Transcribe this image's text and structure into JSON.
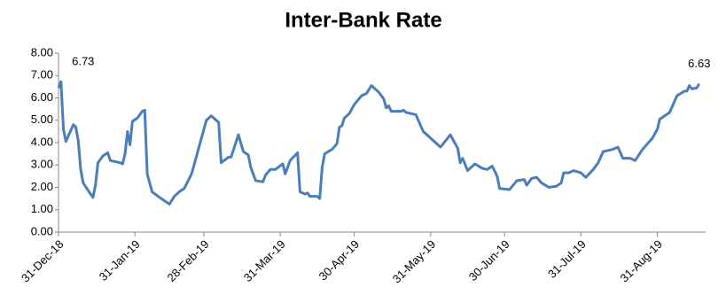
{
  "chart_data": {
    "type": "line",
    "title": "Inter-Bank Rate",
    "x": [
      "2018-12-31",
      "2019-01-01",
      "2019-01-02",
      "2019-01-03",
      "2019-01-06",
      "2019-01-07",
      "2019-01-08",
      "2019-01-09",
      "2019-01-10",
      "2019-01-13",
      "2019-01-14",
      "2019-01-15",
      "2019-01-16",
      "2019-01-18",
      "2019-01-20",
      "2019-01-21",
      "2019-01-25",
      "2019-01-26",
      "2019-01-27",
      "2019-01-28",
      "2019-01-29",
      "2019-01-30",
      "2019-02-01",
      "2019-02-03",
      "2019-02-04",
      "2019-02-05",
      "2019-02-07",
      "2019-02-10",
      "2019-02-12",
      "2019-02-14",
      "2019-02-16",
      "2019-02-18",
      "2019-02-20",
      "2019-02-23",
      "2019-02-26",
      "2019-03-01",
      "2019-03-03",
      "2019-03-06",
      "2019-03-07",
      "2019-03-10",
      "2019-03-11",
      "2019-03-14",
      "2019-03-16",
      "2019-03-18",
      "2019-03-19",
      "2019-03-21",
      "2019-03-24",
      "2019-03-25",
      "2019-03-27",
      "2019-03-29",
      "2019-04-01",
      "2019-04-02",
      "2019-04-04",
      "2019-04-07",
      "2019-04-08",
      "2019-04-10",
      "2019-04-11",
      "2019-04-12",
      "2019-04-15",
      "2019-04-16",
      "2019-04-17",
      "2019-04-18",
      "2019-04-21",
      "2019-04-23",
      "2019-04-24",
      "2019-04-25",
      "2019-04-26",
      "2019-04-28",
      "2019-04-30",
      "2019-05-03",
      "2019-05-05",
      "2019-05-07",
      "2019-05-10",
      "2019-05-12",
      "2019-05-13",
      "2019-05-14",
      "2019-05-15",
      "2019-05-19",
      "2019-05-20",
      "2019-05-21",
      "2019-05-25",
      "2019-05-28",
      "2019-06-01",
      "2019-06-04",
      "2019-06-08",
      "2019-06-11",
      "2019-06-12",
      "2019-06-13",
      "2019-06-15",
      "2019-06-18",
      "2019-06-21",
      "2019-06-23",
      "2019-06-25",
      "2019-06-27",
      "2019-06-28",
      "2019-07-02",
      "2019-07-05",
      "2019-07-08",
      "2019-07-09",
      "2019-07-11",
      "2019-07-13",
      "2019-07-15",
      "2019-07-18",
      "2019-07-21",
      "2019-07-23",
      "2019-07-24",
      "2019-07-26",
      "2019-07-28",
      "2019-07-31",
      "2019-08-02",
      "2019-08-05",
      "2019-08-07",
      "2019-08-09",
      "2019-08-13",
      "2019-08-15",
      "2019-08-17",
      "2019-08-20",
      "2019-08-22",
      "2019-08-25",
      "2019-08-29",
      "2019-08-31",
      "2019-09-01",
      "2019-09-05",
      "2019-09-08",
      "2019-09-11",
      "2019-09-12",
      "2019-09-13",
      "2019-09-14",
      "2019-09-16",
      "2019-09-17"
    ],
    "series": [
      {
        "name": "Inter-Bank Rate",
        "color": "#4a7ebb",
        "values": [
          6.45,
          6.73,
          4.6,
          4.05,
          4.8,
          4.7,
          4.1,
          2.8,
          2.2,
          1.7,
          1.55,
          2.1,
          3.1,
          3.4,
          3.55,
          3.2,
          3.1,
          3.05,
          3.5,
          4.5,
          3.9,
          4.95,
          5.1,
          5.4,
          5.45,
          2.6,
          1.8,
          1.55,
          1.4,
          1.25,
          1.6,
          1.8,
          1.95,
          2.6,
          3.8,
          5.0,
          5.2,
          4.9,
          3.1,
          3.35,
          3.35,
          4.35,
          3.6,
          3.45,
          2.9,
          2.3,
          2.25,
          2.55,
          2.8,
          2.8,
          3.05,
          2.6,
          3.2,
          3.55,
          1.8,
          1.7,
          1.75,
          1.6,
          1.6,
          1.5,
          2.9,
          3.5,
          3.7,
          3.95,
          4.7,
          4.75,
          5.1,
          5.3,
          5.7,
          6.1,
          6.2,
          6.55,
          6.25,
          5.95,
          5.55,
          5.65,
          5.4,
          5.4,
          5.45,
          5.35,
          5.25,
          4.5,
          4.1,
          3.8,
          4.35,
          3.75,
          3.1,
          3.3,
          2.75,
          3.05,
          2.85,
          2.8,
          2.95,
          2.5,
          1.95,
          1.9,
          2.3,
          2.35,
          2.1,
          2.4,
          2.45,
          2.2,
          2.0,
          2.05,
          2.2,
          2.65,
          2.65,
          2.75,
          2.65,
          2.45,
          2.8,
          3.1,
          3.6,
          3.7,
          3.8,
          3.3,
          3.3,
          3.2,
          3.7,
          4.2,
          4.6,
          5.05,
          5.35,
          6.1,
          6.3,
          6.3,
          6.55,
          6.4,
          6.45,
          6.63
        ],
        "value_labels": [
          null,
          "6.73",
          null,
          null,
          null,
          null,
          null,
          null,
          null,
          null,
          null,
          null,
          null,
          null,
          null,
          null,
          null,
          null,
          null,
          null,
          null,
          null,
          null,
          null,
          null,
          null,
          null,
          null,
          null,
          null,
          null,
          null,
          null,
          null,
          null,
          null,
          null,
          null,
          null,
          null,
          null,
          null,
          null,
          null,
          null,
          null,
          null,
          null,
          null,
          null,
          null,
          null,
          null,
          null,
          null,
          null,
          null,
          null,
          null,
          null,
          null,
          null,
          null,
          null,
          null,
          null,
          null,
          null,
          null,
          null,
          null,
          null,
          null,
          null,
          null,
          null,
          null,
          null,
          null,
          null,
          null,
          null,
          null,
          null,
          null,
          null,
          null,
          null,
          null,
          null,
          null,
          null,
          null,
          null,
          null,
          null,
          null,
          null,
          null,
          null,
          null,
          null,
          null,
          null,
          null,
          null,
          null,
          null,
          null,
          null,
          null,
          null,
          null,
          null,
          null,
          null,
          null,
          null,
          null,
          null,
          null,
          null,
          null,
          null,
          null,
          null,
          null,
          null,
          null,
          "6.63"
        ]
      }
    ],
    "ylim": [
      0,
      8
    ],
    "yticks": [
      {
        "value": 0,
        "label": "0.00"
      },
      {
        "value": 1,
        "label": "1.00"
      },
      {
        "value": 2,
        "label": "2.00"
      },
      {
        "value": 3,
        "label": "3.00"
      },
      {
        "value": 4,
        "label": "4.00"
      },
      {
        "value": 5,
        "label": "5.00"
      },
      {
        "value": 6,
        "label": "6.00"
      },
      {
        "value": 7,
        "label": "7.00"
      },
      {
        "value": 8,
        "label": "8.00"
      }
    ],
    "xticks": [
      {
        "value": "2018-12-31",
        "label": "31-Dec-18"
      },
      {
        "value": "2019-01-31",
        "label": "31-Jan-19"
      },
      {
        "value": "2019-02-28",
        "label": "28-Feb-19"
      },
      {
        "value": "2019-03-31",
        "label": "31-Mar-19"
      },
      {
        "value": "2019-04-30",
        "label": "30-Apr-19"
      },
      {
        "value": "2019-05-31",
        "label": "31-May-19"
      },
      {
        "value": "2019-06-30",
        "label": "30-Jun-19"
      },
      {
        "value": "2019-07-31",
        "label": "31-Jul-19"
      },
      {
        "value": "2019-08-31",
        "label": "31-Aug-19"
      }
    ],
    "grid": false
  }
}
